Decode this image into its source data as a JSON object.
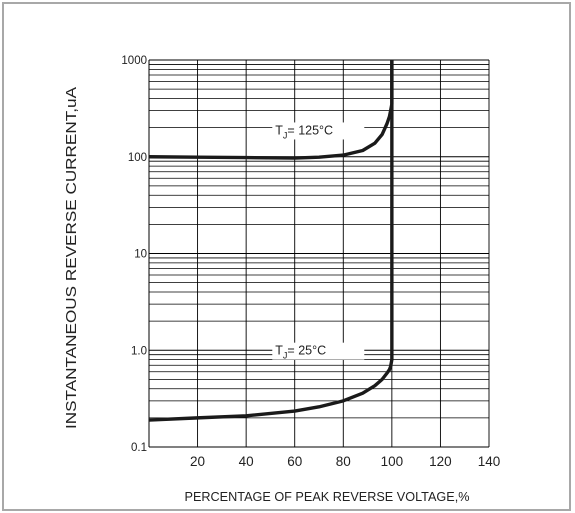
{
  "chart_data": {
    "type": "line",
    "title": "",
    "xlabel": "PERCENTAGE OF PEAK REVERSE VOLTAGE,%",
    "ylabel": "INSTANTANEOUS REVERSE CURRENT,uA",
    "xlim": [
      0,
      140
    ],
    "ylim": [
      0.1,
      1000
    ],
    "yscale": "log",
    "grid": true,
    "x_ticks": [
      20,
      40,
      60,
      80,
      100,
      120,
      140
    ],
    "x_tick_labels": [
      "20",
      "40",
      "60",
      "80",
      "100",
      "120",
      "140"
    ],
    "y_ticks": [
      0.1,
      1,
      10,
      100,
      1000
    ],
    "y_tick_labels": [
      "0.1",
      "1.0",
      "10",
      "100",
      "1000"
    ],
    "series": [
      {
        "name": "T_J = 125°C",
        "label_main": "T",
        "label_sub": "J",
        "label_rest": "= 125°C",
        "label_at": [
          52,
          170
        ],
        "x": [
          0,
          20,
          40,
          60,
          70,
          80,
          88,
          93,
          96,
          98,
          99,
          99.5,
          100,
          100,
          100
        ],
        "y": [
          100,
          99,
          98,
          97,
          99,
          104,
          116,
          138,
          170,
          220,
          260,
          300,
          350,
          600,
          1000
        ]
      },
      {
        "name": "T_J = 25°C",
        "label_main": "T",
        "label_sub": "J",
        "label_rest": "= 25°C",
        "label_at": [
          52,
          0.9
        ],
        "x": [
          0,
          20,
          40,
          60,
          70,
          80,
          88,
          93,
          96,
          98,
          99,
          99.5,
          100,
          100,
          100
        ],
        "y": [
          0.19,
          0.2,
          0.21,
          0.235,
          0.26,
          0.3,
          0.36,
          0.43,
          0.5,
          0.58,
          0.63,
          0.68,
          0.8,
          5,
          1000
        ]
      }
    ]
  },
  "colors": {
    "curve": "#1a1a1a",
    "grid": "#000000",
    "frame": "#a8a8a8"
  }
}
